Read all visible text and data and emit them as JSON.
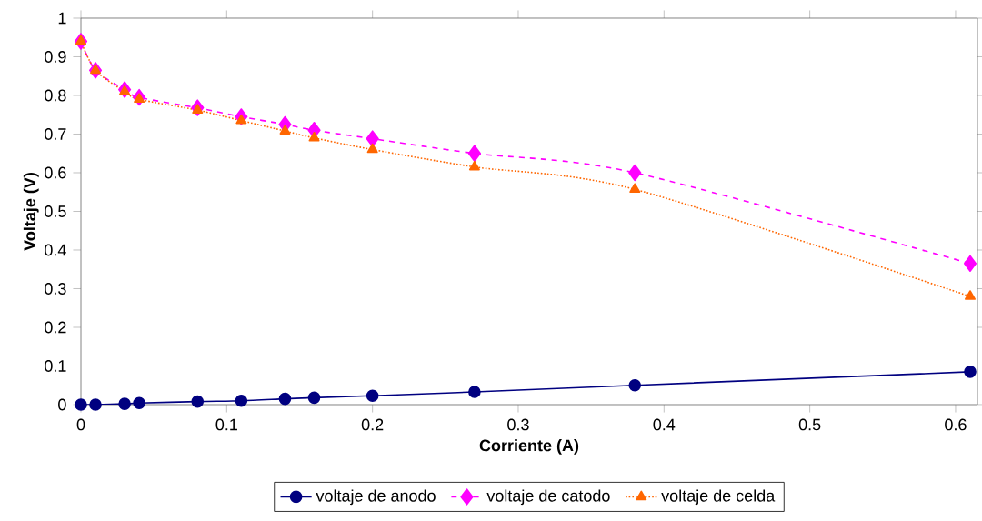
{
  "chart_data": {
    "type": "line",
    "xlabel": "Corriente (A)",
    "ylabel": "Voltaje (V)",
    "x": [
      0,
      0.01,
      0.03,
      0.04,
      0.08,
      0.11,
      0.14,
      0.16,
      0.2,
      0.27,
      0.38,
      0.61
    ],
    "series": [
      {
        "name": "voltaje de anodo",
        "color": "#000080",
        "marker": "circle",
        "line_style": "solid",
        "values": [
          0,
          0,
          0.002,
          0.004,
          0.008,
          0.01,
          0.015,
          0.018,
          0.023,
          0.033,
          0.05,
          0.085
        ]
      },
      {
        "name": "voltaje de catodo",
        "color": "#ff00ff",
        "marker": "diamond",
        "line_style": "dashed",
        "values": [
          0.94,
          0.865,
          0.815,
          0.795,
          0.768,
          0.745,
          0.725,
          0.71,
          0.688,
          0.65,
          0.6,
          0.365
        ]
      },
      {
        "name": "voltaje de celda",
        "color": "#ff6600",
        "marker": "triangle",
        "line_style": "dotted",
        "values": [
          0.94,
          0.865,
          0.81,
          0.79,
          0.762,
          0.735,
          0.708,
          0.69,
          0.66,
          0.615,
          0.557,
          0.28
        ]
      }
    ],
    "xlim": [
      0,
      0.615
    ],
    "xticks": [
      0,
      0.1,
      0.2,
      0.3,
      0.4,
      0.5,
      0.6
    ],
    "ylim": [
      0,
      1
    ],
    "yticks": [
      0,
      0.1,
      0.2,
      0.3,
      0.4,
      0.5,
      0.6,
      0.7,
      0.8,
      0.9,
      1
    ],
    "grid": false,
    "legend": "bottom"
  }
}
